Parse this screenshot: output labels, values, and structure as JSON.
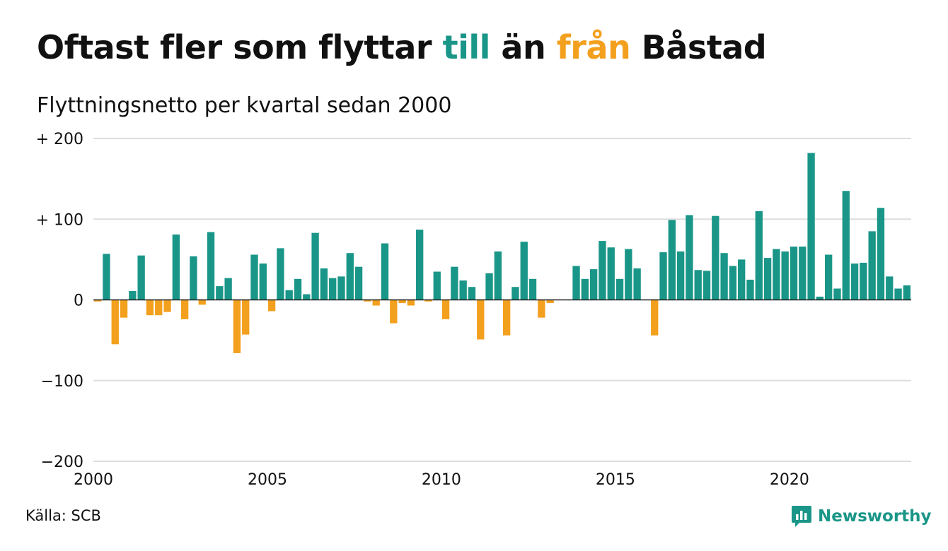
{
  "title": {
    "part1": "Oftast fler som flyttar ",
    "till": "till",
    "part2": " än ",
    "fran": "från",
    "part3": " Båstad"
  },
  "colors": {
    "positive": "#1a9688",
    "negative": "#f3a01e",
    "grid": "#dddddd",
    "text": "#111111"
  },
  "source": "Källa: SCB",
  "logo": {
    "text": "Newsworthy",
    "icon": "chart-bubble-icon"
  },
  "chart_data": {
    "type": "bar",
    "title": "Oftast fler som flyttar till än från Båstad",
    "subtitle": "Flyttningsnetto per kvartal sedan 2000",
    "xlabel": "",
    "ylabel": "",
    "ylim": [
      -200,
      200
    ],
    "yticks": [
      200,
      100,
      0,
      -100,
      -200
    ],
    "ytick_labels": [
      "+ 200",
      "+ 100",
      "0",
      "−100",
      "−200"
    ],
    "xlim": [
      2000,
      2023.5
    ],
    "xticks": [
      2000,
      2005,
      2010,
      2015,
      2020
    ],
    "xtick_labels": [
      "2000",
      "2005",
      "2010",
      "2015",
      "2020"
    ],
    "grid": true,
    "legend": "none",
    "start_quarter": "2000 Q1",
    "values": [
      -2,
      57,
      -55,
      -22,
      11,
      55,
      -19,
      -19,
      -15,
      81,
      -24,
      54,
      -6,
      84,
      17,
      27,
      -66,
      -43,
      56,
      45,
      -14,
      64,
      12,
      26,
      7,
      83,
      39,
      27,
      29,
      58,
      41,
      -2,
      -7,
      70,
      -29,
      -4,
      -7,
      87,
      -2,
      35,
      -24,
      41,
      24,
      16,
      -49,
      33,
      60,
      -44,
      16,
      72,
      26,
      -22,
      -4,
      0,
      0,
      42,
      26,
      38,
      73,
      65,
      26,
      63,
      39,
      0,
      -44,
      59,
      99,
      60,
      105,
      37,
      36,
      104,
      58,
      42,
      50,
      25,
      110,
      52,
      63,
      60,
      66,
      66,
      182,
      4,
      56,
      14,
      135,
      45,
      46,
      85,
      114,
      29,
      14,
      18
    ]
  }
}
